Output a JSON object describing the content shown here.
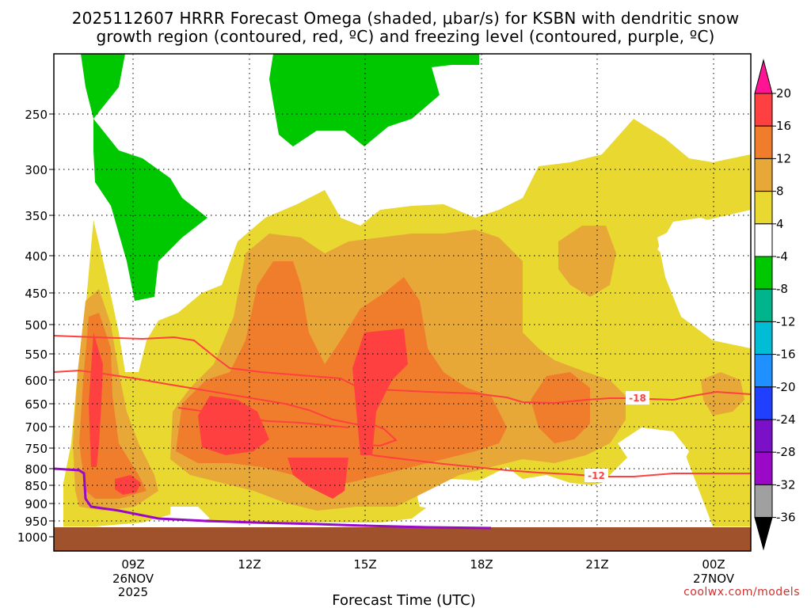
{
  "chart_data": {
    "type": "heatmap",
    "title_lines": [
      "2025112607 HRRR Forecast Omega (shaded, μbar/s) for KSBN with dendritic snow",
      "growth region (contoured, red, ºC) and freezing level (contoured, purple, ºC)"
    ],
    "xlabel": "Forecast Time (UTC)",
    "x_ticks": [
      {
        "label": "09Z",
        "sub": [
          "26NOV",
          "2025"
        ]
      },
      {
        "label": "12Z",
        "sub": []
      },
      {
        "label": "15Z",
        "sub": []
      },
      {
        "label": "18Z",
        "sub": []
      },
      {
        "label": "21Z",
        "sub": []
      },
      {
        "label": "00Z",
        "sub": [
          "27NOV"
        ]
      }
    ],
    "y_ticks": [
      "250",
      "300",
      "350",
      "400",
      "450",
      "500",
      "550",
      "600",
      "650",
      "700",
      "750",
      "800",
      "850",
      "900",
      "950",
      "1000"
    ],
    "colorbar": {
      "labels": [
        "20",
        "16",
        "12",
        "8",
        "4",
        "-4",
        "-8",
        "-12",
        "-16",
        "-20",
        "-24",
        "-28",
        "-32",
        "-36"
      ],
      "colors": [
        "#ff1493",
        "#ff4040",
        "#f07d2c",
        "#e8a838",
        "#e8d830",
        "#ffffff",
        "#00c800",
        "#00b48c",
        "#00bcd4",
        "#1e90ff",
        "#2040ff",
        "#7a10c8",
        "#9a08c8",
        "#a0a0a0",
        "#000000"
      ]
    },
    "contours": [
      {
        "label": "-18",
        "color": "#ff4040"
      },
      {
        "label": "-12",
        "color": "#ff4040"
      },
      {
        "label": "",
        "color": "#9a08c8"
      }
    ],
    "grid": true
  },
  "credit": "coolwx.com/models"
}
